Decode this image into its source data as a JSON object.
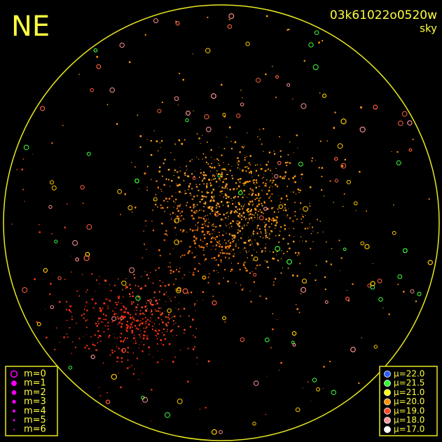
{
  "header": {
    "title": "NE",
    "id": "03k61022o0520w",
    "subtitle": "sky"
  },
  "magnitude_legend": {
    "color": "#ff00ff",
    "items": [
      "m=0",
      "m=1",
      "m=2",
      "m=3",
      "m=4",
      "m=5",
      "m=6"
    ]
  },
  "brightness_legend": {
    "items": [
      {
        "label": "μ=22.0",
        "color": "#2a5cff"
      },
      {
        "label": "μ=21.5",
        "color": "#30ff30"
      },
      {
        "label": "μ=21.0",
        "color": "#ffff00"
      },
      {
        "label": "μ=20.0",
        "color": "#ff9000"
      },
      {
        "label": "μ=19.0",
        "color": "#ff4a2a"
      },
      {
        "label": "μ=18.0",
        "color": "#ff9a9a"
      },
      {
        "label": "μ=17.0",
        "color": "#ffffff"
      }
    ]
  }
}
